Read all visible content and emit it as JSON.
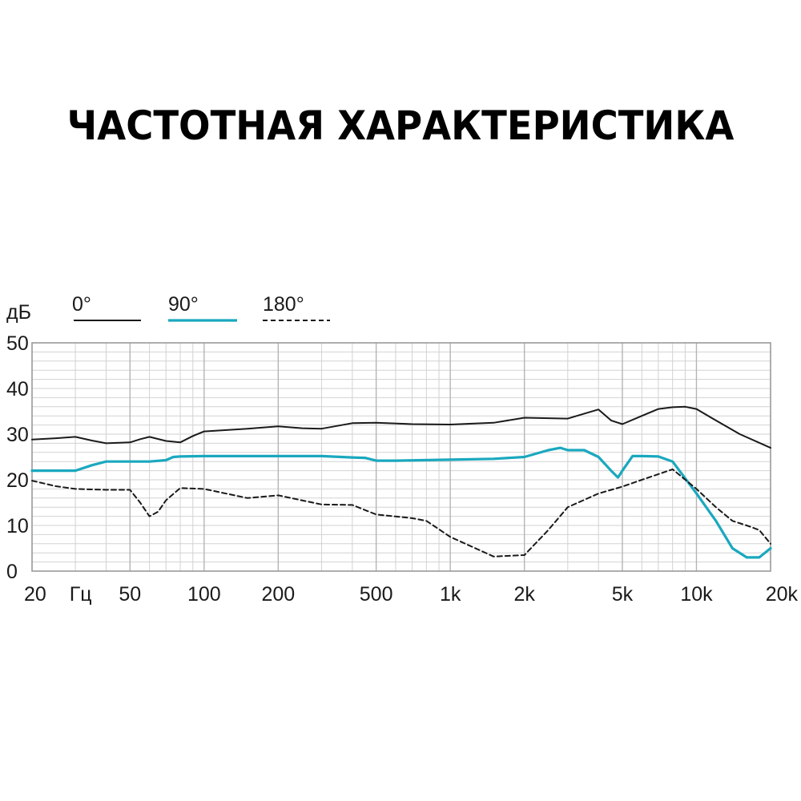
{
  "chart_data": {
    "type": "line",
    "title": "ЧАСТОТНАЯ ХАРАКТЕРИСТИКА",
    "ylabel": "дБ",
    "x_scale": "log",
    "xlim": [
      20,
      20000
    ],
    "ylim": [
      0,
      50
    ],
    "grid": true,
    "legend_position": "top-left",
    "y_ticks": [
      {
        "value": 0,
        "label": "0"
      },
      {
        "value": 10,
        "label": "10"
      },
      {
        "value": 20,
        "label": "20"
      },
      {
        "value": 30,
        "label": "30"
      },
      {
        "value": 40,
        "label": "40"
      },
      {
        "value": 50,
        "label": "50"
      }
    ],
    "x_ticks": [
      {
        "value": 20,
        "label": "20"
      },
      {
        "value": 31.5,
        "label": "Гц"
      },
      {
        "value": 50,
        "label": "50"
      },
      {
        "value": 100,
        "label": "100"
      },
      {
        "value": 200,
        "label": "200"
      },
      {
        "value": 500,
        "label": "500"
      },
      {
        "value": 1000,
        "label": "1k"
      },
      {
        "value": 2000,
        "label": "2k"
      },
      {
        "value": 5000,
        "label": "5k"
      },
      {
        "value": 10000,
        "label": "10k"
      },
      {
        "value": 20000,
        "label": "20k"
      }
    ],
    "series": [
      {
        "name": "0°",
        "color": "#1a1a1a",
        "style": "solid",
        "points": [
          [
            20,
            28.8
          ],
          [
            25,
            29.1
          ],
          [
            30,
            29.4
          ],
          [
            35,
            28.6
          ],
          [
            40,
            28
          ],
          [
            50,
            28.2
          ],
          [
            55,
            28.9
          ],
          [
            60,
            29.4
          ],
          [
            70,
            28.5
          ],
          [
            80,
            28.2
          ],
          [
            90,
            29.6
          ],
          [
            100,
            30.6
          ],
          [
            150,
            31.2
          ],
          [
            200,
            31.7
          ],
          [
            250,
            31.3
          ],
          [
            300,
            31.2
          ],
          [
            400,
            32.4
          ],
          [
            500,
            32.5
          ],
          [
            700,
            32.2
          ],
          [
            1000,
            32.1
          ],
          [
            1500,
            32.5
          ],
          [
            2000,
            33.6
          ],
          [
            3000,
            33.4
          ],
          [
            3500,
            34.5
          ],
          [
            4000,
            35.4
          ],
          [
            4500,
            33
          ],
          [
            5000,
            32.2
          ],
          [
            6000,
            34
          ],
          [
            7000,
            35.5
          ],
          [
            8000,
            35.9
          ],
          [
            9000,
            36
          ],
          [
            10000,
            35.5
          ],
          [
            12000,
            33
          ],
          [
            15000,
            30
          ],
          [
            20000,
            27
          ]
        ]
      },
      {
        "name": "90°",
        "color": "#1aa8bf",
        "style": "solid",
        "points": [
          [
            20,
            22
          ],
          [
            30,
            22
          ],
          [
            35,
            23.2
          ],
          [
            40,
            24
          ],
          [
            50,
            24
          ],
          [
            60,
            24
          ],
          [
            70,
            24.3
          ],
          [
            75,
            25
          ],
          [
            80,
            25.1
          ],
          [
            100,
            25.2
          ],
          [
            200,
            25.2
          ],
          [
            300,
            25.2
          ],
          [
            400,
            24.9
          ],
          [
            450,
            24.8
          ],
          [
            500,
            24.2
          ],
          [
            600,
            24.2
          ],
          [
            1000,
            24.4
          ],
          [
            1500,
            24.6
          ],
          [
            2000,
            25
          ],
          [
            2500,
            26.5
          ],
          [
            2800,
            27
          ],
          [
            3000,
            26.5
          ],
          [
            3500,
            26.5
          ],
          [
            4000,
            25
          ],
          [
            4500,
            22
          ],
          [
            4800,
            20.5
          ],
          [
            5000,
            22
          ],
          [
            5500,
            25.2
          ],
          [
            6000,
            25.2
          ],
          [
            7000,
            25.1
          ],
          [
            8000,
            24
          ],
          [
            10000,
            17
          ],
          [
            12000,
            11
          ],
          [
            14000,
            5
          ],
          [
            16000,
            3
          ],
          [
            18000,
            3
          ],
          [
            20000,
            5
          ]
        ]
      },
      {
        "name": "180°",
        "color": "#1a1a1a",
        "style": "dashed",
        "points": [
          [
            20,
            19.8
          ],
          [
            25,
            18.6
          ],
          [
            30,
            18
          ],
          [
            40,
            17.8
          ],
          [
            50,
            17.8
          ],
          [
            55,
            15
          ],
          [
            60,
            12
          ],
          [
            65,
            13
          ],
          [
            70,
            15.5
          ],
          [
            80,
            18.2
          ],
          [
            100,
            18
          ],
          [
            150,
            16
          ],
          [
            200,
            16.6
          ],
          [
            300,
            14.6
          ],
          [
            400,
            14.5
          ],
          [
            500,
            12.4
          ],
          [
            700,
            11.6
          ],
          [
            800,
            11
          ],
          [
            1000,
            7.5
          ],
          [
            1500,
            3.2
          ],
          [
            2000,
            3.5
          ],
          [
            2500,
            9
          ],
          [
            3000,
            14
          ],
          [
            4000,
            17
          ],
          [
            5000,
            18.5
          ],
          [
            6000,
            20
          ],
          [
            8000,
            22.3
          ],
          [
            10000,
            18
          ],
          [
            12000,
            14
          ],
          [
            14000,
            11
          ],
          [
            16000,
            10
          ],
          [
            18000,
            9
          ],
          [
            20000,
            6
          ]
        ]
      }
    ]
  }
}
